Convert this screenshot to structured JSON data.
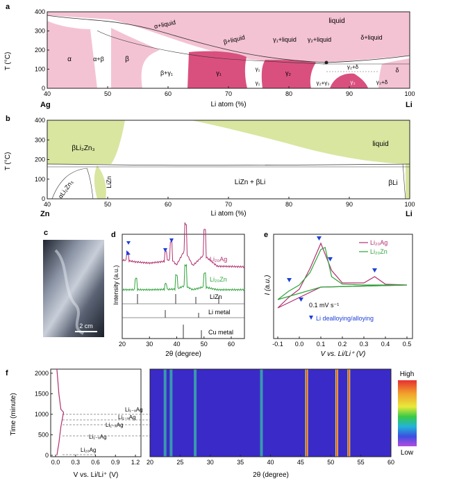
{
  "colors": {
    "pink_light": "#F4C3D3",
    "pink_dark": "#D9507E",
    "green_light": "#D8E6A0",
    "xrd_li20ag": "#B0306F",
    "xrd_li20zn": "#2FA33B",
    "marker_blue": "#1E3FD8",
    "heat_bg": "#3A2AC8"
  },
  "panel_a": {
    "label": "a",
    "ylabel": "T (°C)",
    "xlabel": "Li atom (%)",
    "left_element": "Ag",
    "right_element": "Li",
    "x_ticks": [
      "40",
      "50",
      "60",
      "70",
      "80",
      "90",
      "100"
    ],
    "y_ticks": [
      "0",
      "100",
      "200",
      "300",
      "400"
    ],
    "regions": {
      "liquid": "liquid",
      "alpha_liquid": "α+liquid",
      "beta_liquid": "β+liquid",
      "g1_liquid": "γ₁+liquid",
      "g2_liquid": "γ₂+liquid",
      "delta_liquid": "δ+liquid",
      "alpha": "α",
      "alpha_beta": "α+β",
      "beta": "β",
      "beta_g1": "β+γ₁",
      "g1": "γ₁",
      "g2": "γ₂",
      "g1a": "γ₁",
      "g1b": "γ₁",
      "g3": "γ₃",
      "g2_delta": "γ₂+δ",
      "delta": "δ",
      "g2_g3": "γ₂+γ₃",
      "g3_delta": "γ₃+δ"
    }
  },
  "panel_b": {
    "label": "b",
    "ylabel": "T (°C)",
    "xlabel": "Li atom (%)",
    "left_element": "Zn",
    "right_element": "Li",
    "x_ticks": [
      "40",
      "50",
      "60",
      "70",
      "80",
      "90",
      "100"
    ],
    "y_ticks": [
      "0",
      "100",
      "200",
      "300",
      "400"
    ],
    "regions": {
      "beta_li2zn3": "βLi₂Zn₃",
      "liquid": "liquid",
      "alpha_li2zn3": "αLi₂Zn₃",
      "lizn": "LiZn",
      "lizn_beta_li": "LiZn + βLi",
      "beta_li": "βLi"
    }
  },
  "panel_c": {
    "label": "c",
    "scale_bar": "2 cm"
  },
  "panel_d": {
    "label": "d",
    "ylabel": "Intensity (a.u.)",
    "xlabel": "2θ (degree)",
    "x_ticks": [
      "20",
      "30",
      "40",
      "50",
      "60"
    ],
    "curves": [
      "Li20Ag",
      "Li20Zn"
    ],
    "curve_labels": {
      "ag": "Li₂₀Ag",
      "zn": "Li₂₀Zn"
    },
    "references": [
      "LiZn",
      "Li metal",
      "Cu metal"
    ]
  },
  "panel_e": {
    "label": "e",
    "ylabel": "I (a.u.)",
    "xlabel": "V vs. Li/Li⁺ (V)",
    "x_ticks": [
      "-0.1",
      "0.0",
      "0.1",
      "0.2",
      "0.3",
      "0.4",
      "0.5"
    ],
    "legend": [
      "Li₂₀Ag",
      "Li₂₀Zn"
    ],
    "scan_rate": "0.1 mV s⁻¹",
    "marker_note": "Li dealloying/alloying"
  },
  "panel_f": {
    "label": "f",
    "ylabel": "Time (minute)",
    "xlabel_left": "V vs. Li/Li⁺ (V)",
    "xlabel_right": "2θ (degree)",
    "y_ticks": [
      "0",
      "500",
      "1000",
      "1500",
      "2000"
    ],
    "x_ticks_left": [
      "0.0",
      "0.3",
      "0.6",
      "0.9",
      "1.2"
    ],
    "x_ticks_right": [
      "20",
      "25",
      "30",
      "35",
      "40",
      "45",
      "50",
      "55",
      "60"
    ],
    "phase_labels": [
      "Li₁₋ₓAg",
      "Li₁₋ₓAg",
      "Li₁₋ₓAg",
      "Li₁₋ₓAg",
      "Li₂₀Ag"
    ],
    "colorbar_high": "High",
    "colorbar_low": "Low"
  },
  "chart_data": [
    {
      "type": "line",
      "title": "",
      "xlabel": "Li atom (%)",
      "ylabel": "T (°C)",
      "xlim": [
        40,
        100
      ],
      "ylim": [
        0,
        400
      ],
      "series": [
        {
          "name": "",
          "x": [
            40,
            50,
            60,
            70,
            80,
            85,
            90,
            95,
            100
          ],
          "y": [
            390,
            300,
            225,
            160,
            115,
            100,
            92,
            86,
            80
          ]
        }
      ]
    },
    {
      "type": "line",
      "title": "",
      "xlabel": "Li atom (%)",
      "ylabel": "T (°C)",
      "xlim": [
        40,
        100
      ],
      "ylim": [
        0,
        400
      ],
      "series": [
        {
          "name": "",
          "x": [
            40,
            50,
            60,
            70,
            80,
            90,
            100
          ],
          "y": [
            175,
            160,
            150,
            165,
            175,
            178,
            180
          ]
        }
      ]
    },
    {
      "type": "line",
      "title": "",
      "xlabel": "2θ (degree)",
      "ylabel": "Intensity (a.u.)",
      "xlim": [
        20,
        65
      ],
      "series": [
        {
          "name": "Li₂₀Ag",
          "x": [
            20,
            22,
            25,
            30,
            36,
            38,
            40,
            43,
            46,
            50,
            55,
            60,
            65
          ],
          "y": [
            1.0,
            0.95,
            0.85,
            0.75,
            0.9,
            1.1,
            0.6,
            1.8,
            0.55,
            1.4,
            0.5,
            0.48,
            0.45
          ]
        },
        {
          "name": "Li₂₀Zn",
          "x": [
            20,
            25,
            30,
            36,
            40,
            43,
            46,
            50,
            55,
            60,
            65
          ],
          "y": [
            0.2,
            0.22,
            0.2,
            0.28,
            0.35,
            1.2,
            0.2,
            0.9,
            0.2,
            0.2,
            0.2
          ]
        }
      ]
    },
    {
      "type": "line",
      "title": "",
      "xlabel": "V vs. Li/Li⁺ (V)",
      "ylabel": "I (a.u.)",
      "xlim": [
        -0.12,
        0.5
      ],
      "series": [
        {
          "name": "Li₂₀Ag",
          "x": [
            -0.1,
            -0.05,
            0.0,
            0.05,
            0.1,
            0.15,
            0.2,
            0.3,
            0.35,
            0.4,
            0.5
          ],
          "y": [
            -0.55,
            -0.3,
            -0.1,
            0.4,
            1.0,
            0.35,
            0.05,
            0.05,
            0.2,
            0.02,
            0.0
          ]
        },
        {
          "name": "Li₂₀Zn",
          "x": [
            -0.1,
            -0.05,
            0.0,
            0.05,
            0.1,
            0.12,
            0.15,
            0.2,
            0.3,
            0.4,
            0.5
          ],
          "y": [
            -0.35,
            -0.15,
            0.0,
            0.3,
            0.85,
            0.9,
            0.2,
            0.02,
            0.0,
            0.0,
            0.0
          ]
        }
      ]
    },
    {
      "type": "line",
      "title": "",
      "xlabel": "V vs. Li/Li⁺ (V)",
      "ylabel": "Time (minute)",
      "xlim": [
        0,
        1.2
      ],
      "ylim": [
        0,
        2100
      ],
      "series": [
        {
          "name": "",
          "x": [
            0.02,
            0.05,
            0.08,
            0.12,
            0.08,
            0.05,
            0.03,
            0.02
          ],
          "y": [
            0,
            300,
            700,
            1050,
            1120,
            1500,
            1900,
            2100
          ]
        }
      ]
    },
    {
      "type": "heatmap",
      "title": "",
      "xlabel": "2θ (degree)",
      "ylabel": "Time (minute)",
      "xlim": [
        20,
        60
      ],
      "ylim": [
        0,
        2100
      ],
      "peaks_degree": [
        22.5,
        23.5,
        27.5,
        38.5,
        46,
        51,
        53
      ]
    }
  ]
}
